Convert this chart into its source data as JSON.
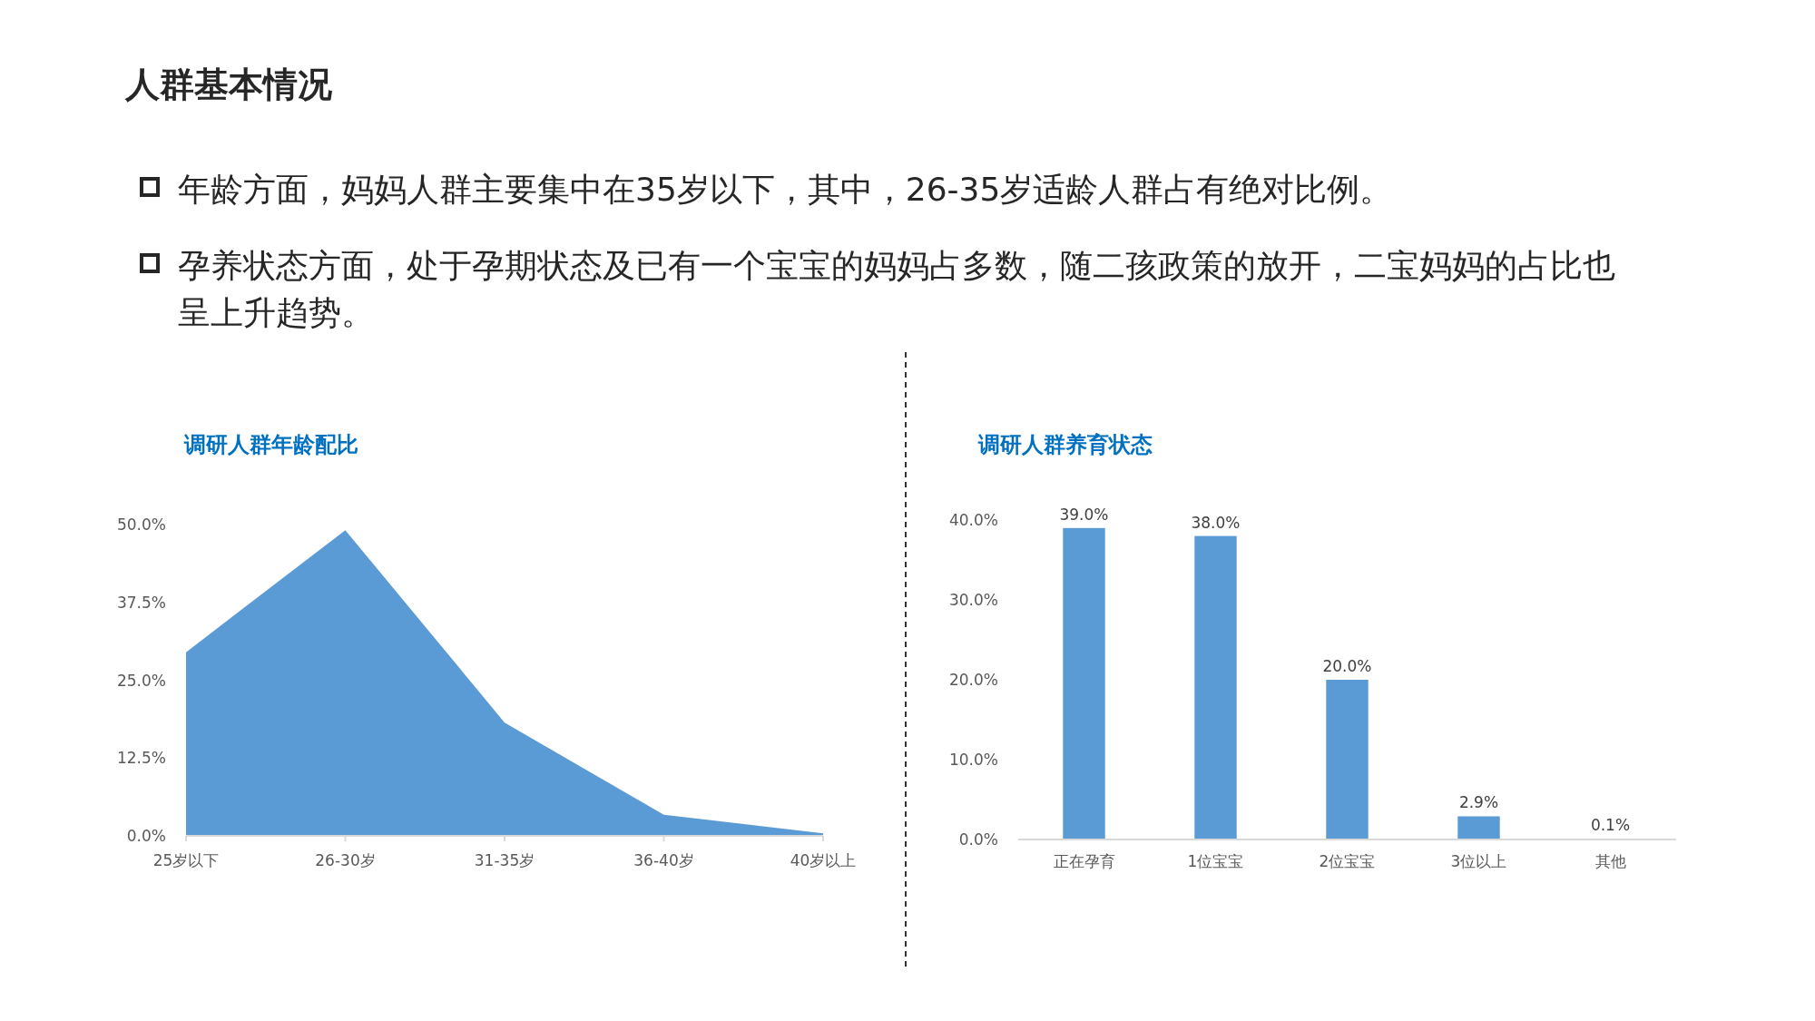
{
  "chart_data": [
    {
      "type": "other",
      "title": "人群基本情况",
      "annotations": [
        "年龄方面，妈妈人群主要集中在35岁以下，其中，26-35岁适龄人群占有绝对比例。",
        "孕养状态方面，处于孕期状态及已有一个宝宝的妈妈占多数，随二孩政策的放开，二宝妈妈的占比也呈上升趋势。"
      ]
    },
    {
      "type": "area",
      "title": "调研人群年龄配比",
      "categories": [
        "25岁以下",
        "26-30岁",
        "31-35岁",
        "36-40岁",
        "40岁以上"
      ],
      "values": [
        29.5,
        49.1,
        18.2,
        3.4,
        0.4
      ],
      "color": "#5b9bd5",
      "ylim": [
        0,
        50
      ],
      "yticks": [
        {
          "value": 0,
          "label": "0.0%"
        },
        {
          "value": 12.5,
          "label": "12.5%"
        },
        {
          "value": 25,
          "label": "25.0%"
        },
        {
          "value": 37.5,
          "label": "37.5%"
        },
        {
          "value": 50,
          "label": "50.0%"
        }
      ]
    },
    {
      "type": "bar",
      "title": "调研人群养育状态",
      "categories": [
        "正在孕育",
        "1位宝宝",
        "2位宝宝",
        "3位以上",
        "其他"
      ],
      "values": [
        39.0,
        38.0,
        20.0,
        2.9,
        0.1
      ],
      "color": "#5b9bd5",
      "ylim": [
        0,
        40
      ],
      "yticks": [
        {
          "value": 0,
          "label": "0.0%"
        },
        {
          "value": 10,
          "label": "10.0%"
        },
        {
          "value": 20,
          "label": "20.0%"
        },
        {
          "value": 30,
          "label": "30.0%"
        },
        {
          "value": 40,
          "label": "40.0%"
        }
      ],
      "value_labels": [
        "39.0%",
        "38.0%",
        "20.0%",
        "2.9%",
        "0.1%"
      ]
    }
  ]
}
